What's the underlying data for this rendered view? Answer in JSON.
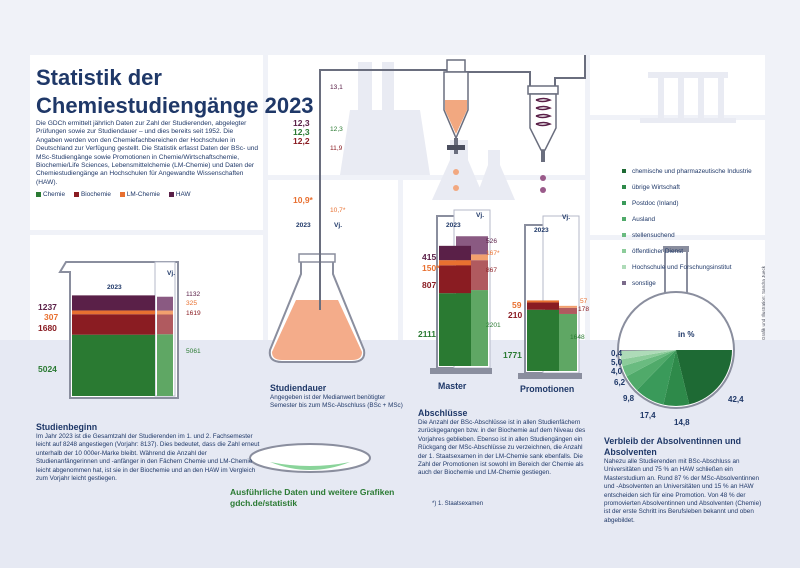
{
  "title_line1": "Statistik der",
  "title_line2": "Chemiestudiengänge 2023",
  "intro": "Die GDCh ermittelt jährlich Daten zur Zahl der Studierenden, abgelegter Prüfungen sowie zur Studiendauer – und dies bereits seit 1952. Die Angaben werden von den Chemiefachbereichen der Hochschulen in Deutschland zur Verfügung gestellt. Die Statistik erfasst Daten der BSc- und MSc-Studiengänge sowie Promotionen in Chemie/Wirtschaftschemie, Biochemie/Life Sciences, Lebensmittelchemie (LM-Chemie) und Daten der Chemiestudiengänge an Hochschulen für Angewandte Wissenschaften (HAW).",
  "legend": [
    {
      "label": "Chemie",
      "color": "#2a7a32"
    },
    {
      "label": "Biochemie",
      "color": "#8a1c22"
    },
    {
      "label": "LM-Chemie",
      "color": "#e87030"
    },
    {
      "label": "HAW",
      "color": "#5a2048"
    }
  ],
  "studienbeginn": {
    "heading": "Studienbeginn",
    "text": "Im Jahr 2023 ist die Gesamtzahl der Studierenden im 1. und 2. Fachsemester leicht auf 8248 angestiegen (Vorjahr: 8137). Dies bedeutet, dass die Zahl erneut unterhalb der 10 000er-Marke bleibt. Während die Anzahl der Studienanfängerinnen und -anfänger in den Fächern Chemie und LM-Chemie leicht abgenommen hat, ist sie in der Biochemie und an den HAW im Vergleich zum Vorjahr leicht gestiegen.",
    "year_label": "2023",
    "prev_label": "Vj.",
    "values_2023": {
      "chemie": "5024",
      "biochemie": "1680",
      "lm": "307",
      "haw": "1237"
    },
    "values_prev": {
      "chemie": "5061",
      "biochemie": "1619",
      "lm": "325",
      "haw": "1132"
    }
  },
  "studiendauer": {
    "heading": "Studiendauer",
    "text": "Angegeben ist der Medianwert benötigter Semester bis zum MSc-Abschluss (BSc + MSc)",
    "year_label": "2023",
    "prev_label": "Vj.",
    "values_2023": {
      "haw": "12,3",
      "chemie": "12,3",
      "biochemie": "12,2",
      "lm": "10,9*"
    },
    "values_prev": {
      "haw": "13,1",
      "chemie": "12,3",
      "biochemie": "11,9",
      "lm": "10,7*"
    }
  },
  "abschluesse": {
    "heading": "Abschlüsse",
    "text": "Die Anzahl der BSc-Abschlüsse ist in allen Studienfächern zurückgegangen bzw. in der Biochemie auf dem Niveau des Vorjahres geblieben. Ebenso ist in allen Studiengängen ein Rückgang der MSc-Abschlüsse zu verzeichnen, die Anzahl der 1. Staatsexamen in der LM-Chemie sank ebenfalls. Die Zahl der Promotionen ist sowohl im Bereich der Chemie als auch der Biochemie und LM-Chemie gestiegen.",
    "footnote": "*) 1. Staatsexamen",
    "master_label": "Master",
    "promo_label": "Promotionen",
    "year_label": "2023",
    "prev_label": "Vj.",
    "master_2023": {
      "chemie": "2111",
      "biochemie": "807",
      "lm": "150*",
      "haw": "415"
    },
    "master_prev": {
      "chemie": "2201",
      "biochemie": "867",
      "lm": "167*",
      "haw": "526"
    },
    "promo_2023": {
      "chemie": "1771",
      "biochemie": "210",
      "lm": "59"
    },
    "promo_prev": {
      "chemie": "1648",
      "biochemie": "178",
      "lm": "57"
    }
  },
  "verbleib": {
    "heading": "Verbleib der Absolventinnen und Absolventen",
    "text": "Nahezu alle Studierenden mit BSc-Abschluss an Universitäten und 75 % an HAW schließen ein Masterstudium an. Rund 87 % der MSc-Absolventinnen und -Absolventen an Universitäten und 15 % an HAW entscheiden sich für eine Promotion. Von 48 % der promovierten Absolventinnen und Absolventen (Chemie) ist der erste Schritt ins Berufsleben bekannt und oben abgebildet.",
    "unit_label": "in %",
    "items": [
      {
        "label": "chemische und pharmazeutische Industrie",
        "color": "#1e6a34",
        "value": "42,4"
      },
      {
        "label": "übrige Wirtschaft",
        "color": "#2e8a4a",
        "value": "14,8"
      },
      {
        "label": "Postdoc (Inland)",
        "color": "#3a9a5a",
        "value": "17,4"
      },
      {
        "label": "Ausland",
        "color": "#50aa6a",
        "value": "9,8"
      },
      {
        "label": "stellensuchend",
        "color": "#6abb80",
        "value": "6,2"
      },
      {
        "label": "öffentlicher Dienst",
        "color": "#8ccc9a",
        "value": "4,0"
      },
      {
        "label": "Hochschule und Forschungsinstitut",
        "color": "#aedbb8",
        "value": "5,0"
      },
      {
        "label": "sonstige",
        "color": "#7a6a8a",
        "value": "0,4"
      }
    ]
  },
  "link": {
    "text": "Ausführliche Daten und weitere Grafiken",
    "url_text": "gdch.de/statistik"
  },
  "credit": "Grafik und Illustration: Sandra Jueck",
  "chart_data": [
    {
      "type": "bar",
      "title": "Studienbeginn",
      "categories": [
        "2023",
        "Vj."
      ],
      "series": [
        {
          "name": "Chemie",
          "values": [
            5024,
            5061
          ]
        },
        {
          "name": "Biochemie",
          "values": [
            1680,
            1619
          ]
        },
        {
          "name": "LM-Chemie",
          "values": [
            307,
            325
          ]
        },
        {
          "name": "HAW",
          "values": [
            1237,
            1132
          ]
        }
      ]
    },
    {
      "type": "table",
      "title": "Studiendauer",
      "categories": [
        "2023",
        "Vj."
      ],
      "series": [
        {
          "name": "HAW",
          "values": [
            12.3,
            13.1
          ]
        },
        {
          "name": "Chemie",
          "values": [
            12.3,
            12.3
          ]
        },
        {
          "name": "Biochemie",
          "values": [
            12.2,
            11.9
          ]
        },
        {
          "name": "LM-Chemie",
          "values": [
            10.9,
            10.7
          ]
        }
      ]
    },
    {
      "type": "bar",
      "title": "Master",
      "categories": [
        "2023",
        "Vj."
      ],
      "series": [
        {
          "name": "Chemie",
          "values": [
            2111,
            2201
          ]
        },
        {
          "name": "Biochemie",
          "values": [
            807,
            867
          ]
        },
        {
          "name": "LM-Chemie",
          "values": [
            150,
            167
          ]
        },
        {
          "name": "HAW",
          "values": [
            415,
            526
          ]
        }
      ]
    },
    {
      "type": "bar",
      "title": "Promotionen",
      "categories": [
        "2023",
        "Vj."
      ],
      "series": [
        {
          "name": "Chemie",
          "values": [
            1771,
            1648
          ]
        },
        {
          "name": "Biochemie",
          "values": [
            210,
            178
          ]
        },
        {
          "name": "LM-Chemie",
          "values": [
            59,
            57
          ]
        }
      ]
    },
    {
      "type": "pie",
      "title": "Verbleib der Absolventinnen und Absolventen",
      "categories": [
        "chemische und pharmazeutische Industrie",
        "übrige Wirtschaft",
        "Postdoc (Inland)",
        "Ausland",
        "stellensuchend",
        "öffentlicher Dienst",
        "Hochschule und Forschungsinstitut",
        "sonstige"
      ],
      "values": [
        42.4,
        14.8,
        17.4,
        9.8,
        6.2,
        4.0,
        5.0,
        0.4
      ]
    }
  ]
}
